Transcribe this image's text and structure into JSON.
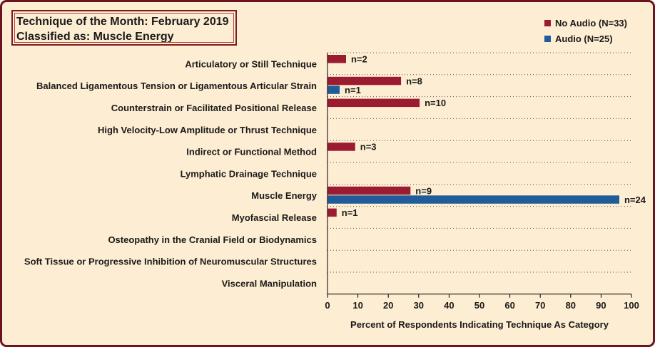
{
  "header": {
    "title_line1": "Technique of the Month: February 2019",
    "title_line2": "Classified as: Muscle Energy"
  },
  "colors": {
    "frame_border": "#6b1420",
    "background": "#fdedd2",
    "no_audio": "#9b1b30",
    "audio": "#1f5c99"
  },
  "chart_data": {
    "type": "bar",
    "orientation": "horizontal",
    "categories": [
      "Articulatory or Still Technique",
      "Balanced Ligamentous Tension or Ligamentous Articular Strain",
      "Counterstrain or Facilitated Positional Release",
      "High Velocity-Low Amplitude or Thrust Technique",
      "Indirect or Functional Method",
      "Lymphatic Drainage Technique",
      "Muscle Energy",
      "Myofascial Release",
      "Osteopathy in the Cranial Field or Biodynamics",
      "Soft Tissue or Progressive Inhibition of Neuromuscular Structures",
      "Visceral Manipulation"
    ],
    "series": [
      {
        "name": "No Audio (N=33)",
        "color": "#9b1b30",
        "values": [
          6.1,
          24.2,
          30.3,
          0,
          9.1,
          0,
          27.3,
          3.0,
          0,
          0,
          0
        ],
        "labels": [
          "n=2",
          "n=8",
          "n=10",
          "",
          "n=3",
          "",
          "n=9",
          "n=1",
          "",
          "",
          ""
        ]
      },
      {
        "name": "Audio (N=25)",
        "color": "#1f5c99",
        "values": [
          0,
          4.0,
          0,
          0,
          0,
          0,
          96.0,
          0,
          0,
          0,
          0
        ],
        "labels": [
          "",
          "n=1",
          "",
          "",
          "",
          "",
          "n=24",
          "",
          "",
          "",
          ""
        ]
      }
    ],
    "xlabel": "Percent of Respondents Indicating Technique As Category",
    "xlim": [
      0,
      100
    ],
    "xticks": [
      "0",
      "10",
      "20",
      "30",
      "40",
      "50",
      "60",
      "70",
      "80",
      "90",
      "100"
    ],
    "legend_position": "top-right",
    "grid": "dotted horizontal"
  }
}
